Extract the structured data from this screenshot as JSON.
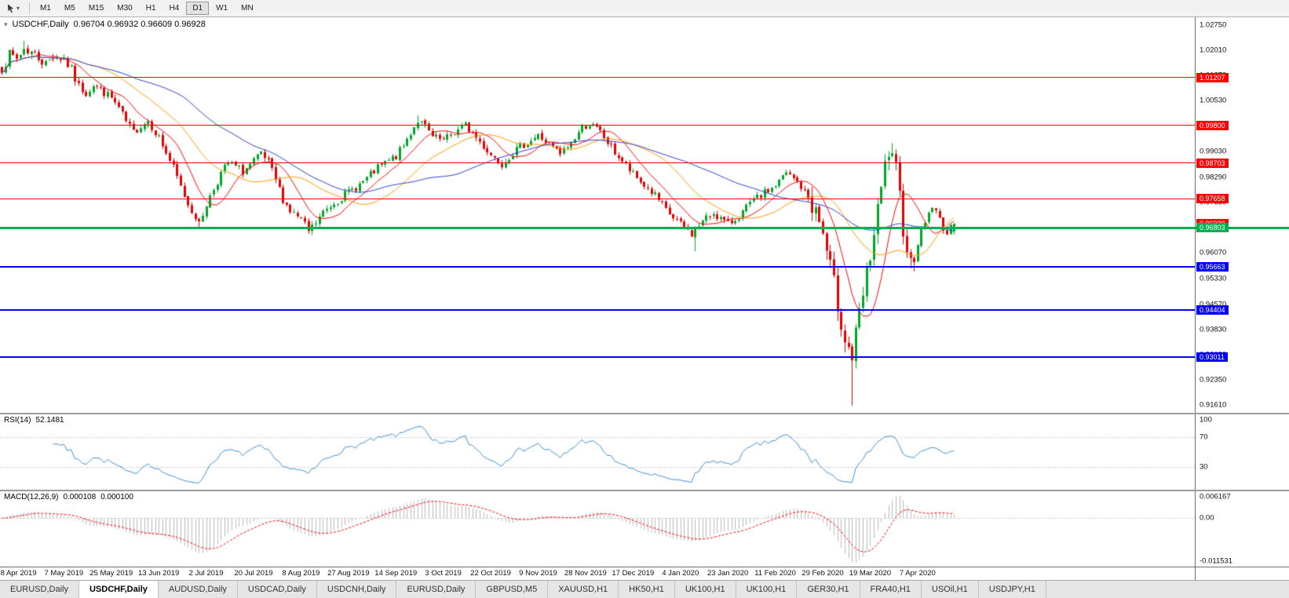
{
  "toolbar": {
    "timeframes": [
      "M1",
      "M5",
      "M15",
      "M30",
      "H1",
      "H4",
      "D1",
      "W1",
      "MN"
    ],
    "active_timeframe": "D1"
  },
  "main_chart": {
    "title": "USDCHF,Daily",
    "ohlc": "0.96704 0.96932 0.96609 0.96928",
    "collapse_icon": "▾"
  },
  "rsi_panel": {
    "label": "RSI(14)",
    "value": "52.1481"
  },
  "macd_panel": {
    "label": "MACD(12,26,9)",
    "value_main": "0.000108",
    "value_signal": "0.000100"
  },
  "tabs": {
    "items": [
      "EURUSD,Daily",
      "USDCHF,Daily",
      "AUDUSD,Daily",
      "USDCAD,Daily",
      "USDCNH,Daily",
      "EURUSD,Daily",
      "GBPUSD,M5",
      "XAUUSD,H1",
      "HK50,H1",
      "UK100,H1",
      "UK100,H1",
      "GER30,H1",
      "FRA40,H1",
      "USOil,H1",
      "USDJPY,H1"
    ],
    "active_index": 1
  },
  "chart_data": {
    "type": "candlestick",
    "symbol": "USDCHF",
    "timeframe": "Daily",
    "last_candle": {
      "open": 0.96704,
      "high": 0.96932,
      "low": 0.96609,
      "close": 0.96928
    },
    "candle_count": 262,
    "plot_fill": 0.8,
    "seed": 7,
    "price_range": [
      0.9139,
      1.0297
    ],
    "y_ticks": [
      1.0275,
      1.0201,
      1.0127,
      1.0053,
      0.9979,
      0.9903,
      0.9829,
      0.9755,
      0.9681,
      0.9607,
      0.9533,
      0.9457,
      0.9383,
      0.9309,
      0.9235,
      0.9161
    ],
    "x_labels": [
      "18 Apr 2019",
      "7 May 2019",
      "25 May 2019",
      "13 Jun 2019",
      "2 Jul 2019",
      "20 Jul 2019",
      "8 Aug 2019",
      "27 Aug 2019",
      "14 Sep 2019",
      "3 Oct 2019",
      "22 Oct 2019",
      "9 Nov 2019",
      "28 Nov 2019",
      "17 Dec 2019",
      "4 Jan 2020",
      "23 Jan 2020",
      "11 Feb 2020",
      "29 Feb 2020",
      "19 Mar 2020",
      "7 Apr 2020"
    ],
    "x_label_first_index": 4,
    "x_label_step": 13,
    "levels": [
      {
        "value": 1.01207,
        "color": "#ff0000",
        "thickness": 1
      },
      {
        "value": 0.998,
        "color": "#ff0000",
        "thickness": 1
      },
      {
        "value": 0.98703,
        "color": "#ff0000",
        "thickness": 1
      },
      {
        "value": 0.97658,
        "color": "#ff0000",
        "thickness": 1
      },
      {
        "value": 0.96803,
        "color": "#00b050",
        "thickness": 3,
        "full_width": true
      },
      {
        "value": 0.95663,
        "color": "#0000ff",
        "thickness": 2
      },
      {
        "value": 0.94404,
        "color": "#0000ff",
        "thickness": 2
      },
      {
        "value": 0.93011,
        "color": "#0000ff",
        "thickness": 2
      }
    ],
    "current_price_box": {
      "value": "0.96928",
      "color": "#ff0000"
    },
    "candle_up_color": "#00a42a",
    "candle_down_color": "#e60000",
    "moving_averages": [
      {
        "period": 10,
        "color": "#ff0000"
      },
      {
        "period": 25,
        "color": "#ff9900"
      },
      {
        "period": 50,
        "color": "#2a3dd1"
      }
    ],
    "noise": {
      "default": 0.0012,
      "zones": [
        [
          0,
          20,
          0.0017
        ],
        [
          222,
          250,
          0.0035
        ]
      ]
    },
    "waypoints": [
      [
        0,
        1.015
      ],
      [
        2,
        1.0185
      ],
      [
        4,
        1.0175
      ],
      [
        6,
        1.0205
      ],
      [
        9,
        1.019
      ],
      [
        12,
        1.016
      ],
      [
        14,
        1.0185
      ],
      [
        17,
        1.0175
      ],
      [
        19,
        1.014
      ],
      [
        21,
        1.0095
      ],
      [
        23,
        1.0075
      ],
      [
        25,
        1.01
      ],
      [
        27,
        1.0085
      ],
      [
        30,
        1.006
      ],
      [
        32,
        1.003
      ],
      [
        34,
        0.999
      ],
      [
        36,
        0.996
      ],
      [
        38,
        0.998
      ],
      [
        40,
        0.9995
      ],
      [
        43,
        0.9945
      ],
      [
        45,
        0.99
      ],
      [
        47,
        0.9855
      ],
      [
        49,
        0.98
      ],
      [
        51,
        0.975
      ],
      [
        53,
        0.9715
      ],
      [
        54,
        0.969
      ],
      [
        56,
        0.975
      ],
      [
        58,
        0.9795
      ],
      [
        60,
        0.984
      ],
      [
        62,
        0.987
      ],
      [
        64,
        0.986
      ],
      [
        66,
        0.9845
      ],
      [
        69,
        0.9875
      ],
      [
        71,
        0.9895
      ],
      [
        73,
        0.987
      ],
      [
        75,
        0.982
      ],
      [
        77,
        0.9765
      ],
      [
        79,
        0.973
      ],
      [
        82,
        0.9705
      ],
      [
        84,
        0.967
      ],
      [
        86,
        0.9695
      ],
      [
        88,
        0.9725
      ],
      [
        91,
        0.9755
      ],
      [
        95,
        0.9785
      ],
      [
        99,
        0.9815
      ],
      [
        103,
        0.9855
      ],
      [
        108,
        0.989
      ],
      [
        110,
        0.992
      ],
      [
        112,
        0.996
      ],
      [
        114,
        0.9995
      ],
      [
        116,
        0.9975
      ],
      [
        118,
        0.9945
      ],
      [
        121,
        0.9935
      ],
      [
        124,
        0.996
      ],
      [
        127,
        0.998
      ],
      [
        130,
        0.9945
      ],
      [
        134,
        0.9895
      ],
      [
        137,
        0.987
      ],
      [
        140,
        0.99
      ],
      [
        143,
        0.9925
      ],
      [
        147,
        0.995
      ],
      [
        150,
        0.9925
      ],
      [
        153,
        0.9895
      ],
      [
        156,
        0.993
      ],
      [
        159,
        0.9975
      ],
      [
        161,
        0.9985
      ],
      [
        164,
        0.996
      ],
      [
        167,
        0.9915
      ],
      [
        170,
        0.9875
      ],
      [
        173,
        0.9835
      ],
      [
        176,
        0.9805
      ],
      [
        179,
        0.9775
      ],
      [
        182,
        0.973
      ],
      [
        186,
        0.969
      ],
      [
        189,
        0.9663
      ],
      [
        192,
        0.97
      ],
      [
        195,
        0.9725
      ],
      [
        199,
        0.969
      ],
      [
        202,
        0.9715
      ],
      [
        205,
        0.975
      ],
      [
        208,
        0.9775
      ],
      [
        212,
        0.9805
      ],
      [
        215,
        0.984
      ],
      [
        218,
        0.9815
      ],
      [
        220,
        0.9785
      ],
      [
        222,
        0.975
      ],
      [
        224,
        0.97
      ],
      [
        225,
        0.966
      ],
      [
        227,
        0.956
      ],
      [
        229,
        0.946
      ],
      [
        231,
        0.936
      ],
      [
        233,
        0.93
      ],
      [
        235,
        0.942
      ],
      [
        237,
        0.954
      ],
      [
        238,
        0.96
      ],
      [
        240,
        0.972
      ],
      [
        242,
        0.9855
      ],
      [
        243,
        0.99
      ],
      [
        245,
        0.984
      ],
      [
        247,
        0.969
      ],
      [
        249,
        0.9575
      ],
      [
        251,
        0.964
      ],
      [
        253,
        0.97
      ],
      [
        255,
        0.9745
      ],
      [
        257,
        0.9705
      ],
      [
        259,
        0.9663
      ],
      [
        261,
        0.96928
      ]
    ],
    "forced_lows": [
      [
        54,
        0.9679
      ],
      [
        85,
        0.9659
      ],
      [
        190,
        0.9612
      ],
      [
        233,
        0.916
      ]
    ],
    "forced_highs": [
      [
        6,
        1.0228
      ],
      [
        114,
        1.001
      ],
      [
        243,
        0.9905
      ]
    ],
    "rsi": {
      "period": 14,
      "color": "#3c8fd6",
      "levels": [
        70,
        30
      ],
      "axis_labels": [
        100,
        70,
        30
      ],
      "range": [
        0,
        100
      ]
    },
    "macd": {
      "fast": 12,
      "slow": 26,
      "signal_period": 9,
      "histogram_color": "#b8b8b8",
      "signal_color": "#ff0000",
      "range": [
        -0.0124,
        0.0069
      ],
      "axis_labels": [
        "0.006167",
        "0.00",
        "-0.011531"
      ],
      "axis_values": [
        0.006167,
        0,
        -0.011531
      ]
    }
  }
}
